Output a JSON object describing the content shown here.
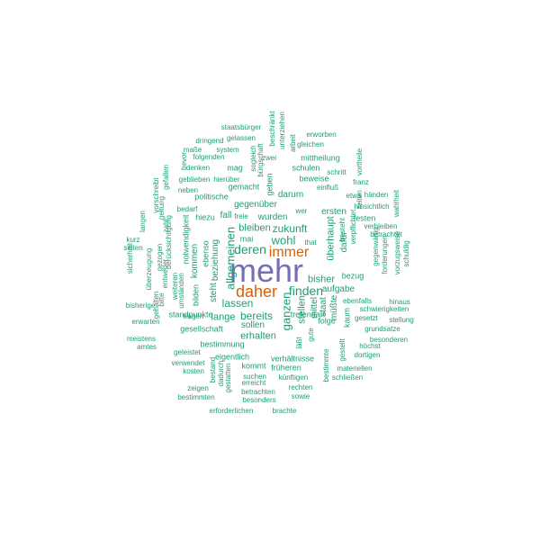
{
  "colors": {
    "primary": "#7570b3",
    "secondary": "#d95f02",
    "common": "#1b9e77"
  },
  "words": [
    {
      "text": "mehr",
      "weight": 1.0,
      "color": "primary"
    },
    {
      "text": "daher",
      "weight": 0.55,
      "color": "secondary"
    },
    {
      "text": "immer",
      "weight": 0.45,
      "color": "secondary"
    },
    {
      "text": "finden",
      "weight": 0.35,
      "color": "common"
    },
    {
      "text": "deren",
      "weight": 0.33,
      "color": "common"
    },
    {
      "text": "allgemeinen",
      "weight": 0.32,
      "color": "common"
    },
    {
      "text": "wohl",
      "weight": 0.3,
      "color": "common"
    },
    {
      "text": "ganzen",
      "weight": 0.3,
      "color": "common"
    },
    {
      "text": "zukunft",
      "weight": 0.28,
      "color": "common"
    },
    {
      "text": "lassen",
      "weight": 0.28,
      "color": "common"
    },
    {
      "text": "bereits",
      "weight": 0.28,
      "color": "common"
    },
    {
      "text": "bleiben",
      "weight": 0.27,
      "color": "common"
    },
    {
      "text": "überhaupt",
      "weight": 0.27,
      "color": "common"
    },
    {
      "text": "erhalten",
      "weight": 0.26,
      "color": "common"
    },
    {
      "text": "bisher",
      "weight": 0.26,
      "color": "common"
    },
    {
      "text": "stellen",
      "weight": 0.25,
      "color": "common"
    },
    {
      "text": "lange",
      "weight": 0.25,
      "color": "common"
    },
    {
      "text": "gegenüber",
      "weight": 0.24,
      "color": "common"
    },
    {
      "text": "wurden",
      "weight": 0.24,
      "color": "common"
    },
    {
      "text": "ersten",
      "weight": 0.24,
      "color": "common"
    },
    {
      "text": "sollen",
      "weight": 0.24,
      "color": "common"
    },
    {
      "text": "müßte",
      "weight": 0.24,
      "color": "common"
    },
    {
      "text": "darum",
      "weight": 0.23,
      "color": "common"
    },
    {
      "text": "steht",
      "weight": 0.23,
      "color": "common"
    },
    {
      "text": "aufgabe",
      "weight": 0.23,
      "color": "common"
    },
    {
      "text": "staat",
      "weight": 0.23,
      "color": "common"
    },
    {
      "text": "kommen",
      "weight": 0.22,
      "color": "common"
    },
    {
      "text": "fall",
      "weight": 0.22,
      "color": "common"
    },
    {
      "text": "beziehung",
      "weight": 0.22,
      "color": "common"
    },
    {
      "text": "mittel",
      "weight": 0.22,
      "color": "common"
    },
    {
      "text": "dafür",
      "weight": 0.22,
      "color": "common"
    },
    {
      "text": "gesellschaft",
      "weight": 0.21,
      "color": "common"
    },
    {
      "text": "ebenso",
      "weight": 0.21,
      "color": "common"
    },
    {
      "text": "notwendigkeit",
      "weight": 0.2,
      "color": "common"
    },
    {
      "text": "bilden",
      "weight": 0.2,
      "color": "common"
    },
    {
      "text": "mai",
      "weight": 0.2,
      "color": "common"
    },
    {
      "text": "geben",
      "weight": 0.2,
      "color": "common"
    },
    {
      "text": "kaum",
      "weight": 0.2,
      "color": "common"
    },
    {
      "text": "folge",
      "weight": 0.2,
      "color": "common"
    },
    {
      "text": "bestimmung",
      "weight": 0.2,
      "color": "common"
    },
    {
      "text": "mittheilung",
      "weight": 0.2,
      "color": "common"
    },
    {
      "text": "verhältnisse",
      "weight": 0.2,
      "color": "common"
    },
    {
      "text": "tretendarf",
      "weight": 0.2,
      "color": "common"
    },
    {
      "text": "standpunkte",
      "weight": 0.19,
      "color": "common"
    },
    {
      "text": "politische",
      "weight": 0.19,
      "color": "common"
    },
    {
      "text": "gemacht",
      "weight": 0.19,
      "color": "common"
    },
    {
      "text": "hiezu",
      "weight": 0.19,
      "color": "common"
    },
    {
      "text": "eigentlich",
      "weight": 0.19,
      "color": "common"
    },
    {
      "text": "kommt",
      "weight": 0.19,
      "color": "common"
    },
    {
      "text": "früheren",
      "weight": 0.19,
      "color": "common"
    },
    {
      "text": "bezug",
      "weight": 0.19,
      "color": "common"
    },
    {
      "text": "festen",
      "weight": 0.19,
      "color": "common"
    },
    {
      "text": "beweise",
      "weight": 0.19,
      "color": "common"
    },
    {
      "text": "schulen",
      "weight": 0.19,
      "color": "common"
    },
    {
      "text": "mag",
      "weight": 0.19,
      "color": "common"
    },
    {
      "text": "folgenden",
      "weight": 0.18,
      "color": "common"
    },
    {
      "text": "tragen",
      "weight": 0.18,
      "color": "common"
    },
    {
      "text": "geleistet",
      "weight": 0.18,
      "color": "common"
    },
    {
      "text": "suchen",
      "weight": 0.18,
      "color": "common"
    },
    {
      "text": "künftigen",
      "weight": 0.18,
      "color": "common"
    },
    {
      "text": "materiellen",
      "weight": 0.18,
      "color": "common"
    },
    {
      "text": "betrachten",
      "weight": 0.18,
      "color": "common"
    },
    {
      "text": "erreicht",
      "weight": 0.18,
      "color": "common"
    },
    {
      "text": "gute",
      "weight": 0.18,
      "color": "common"
    },
    {
      "text": "läßt",
      "weight": 0.18,
      "color": "common"
    },
    {
      "text": "ebenfalls",
      "weight": 0.17,
      "color": "common"
    },
    {
      "text": "gesetzt",
      "weight": 0.17,
      "color": "common"
    },
    {
      "text": "schwierigkeiten",
      "weight": 0.17,
      "color": "common"
    },
    {
      "text": "verbleiben",
      "weight": 0.17,
      "color": "common"
    },
    {
      "text": "betrachtet",
      "weight": 0.17,
      "color": "common"
    },
    {
      "text": "besteht",
      "weight": 0.17,
      "color": "common"
    },
    {
      "text": "verpflichtet",
      "weight": 0.17,
      "color": "common"
    },
    {
      "text": "einfluß",
      "weight": 0.17,
      "color": "common"
    },
    {
      "text": "sogleich",
      "weight": 0.17,
      "color": "common"
    },
    {
      "text": "bürgschaft",
      "weight": 0.17,
      "color": "common"
    },
    {
      "text": "arbeit",
      "weight": 0.17,
      "color": "common"
    },
    {
      "text": "beschränkt",
      "weight": 0.17,
      "color": "common"
    },
    {
      "text": "unterziehen",
      "weight": 0.17,
      "color": "common"
    },
    {
      "text": "bedarf",
      "weight": 0.17,
      "color": "common"
    },
    {
      "text": "neben",
      "weight": 0.17,
      "color": "common"
    },
    {
      "text": "hierüber",
      "weight": 0.17,
      "color": "common"
    },
    {
      "text": "berücksichtigung",
      "weight": 0.17,
      "color": "common"
    },
    {
      "text": "umständen",
      "weight": 0.17,
      "color": "common"
    },
    {
      "text": "weiteren",
      "weight": 0.17,
      "color": "common"
    },
    {
      "text": "freie",
      "weight": 0.17,
      "color": "common"
    },
    {
      "text": "that",
      "weight": 0.17,
      "color": "common"
    },
    {
      "text": "wer",
      "weight": 0.17,
      "color": "common"
    },
    {
      "text": "zwei",
      "weight": 0.17,
      "color": "common"
    },
    {
      "text": "zeigen",
      "weight": 0.16,
      "color": "common"
    },
    {
      "text": "besonders",
      "weight": 0.16,
      "color": "common"
    },
    {
      "text": "rechten",
      "weight": 0.16,
      "color": "common"
    },
    {
      "text": "sowie",
      "weight": 0.16,
      "color": "common"
    },
    {
      "text": "kosten",
      "weight": 0.16,
      "color": "common"
    },
    {
      "text": "verwendet",
      "weight": 0.16,
      "color": "common"
    },
    {
      "text": "gestatten",
      "weight": 0.16,
      "color": "common"
    },
    {
      "text": "dadurch",
      "weight": 0.16,
      "color": "common"
    },
    {
      "text": "bestand",
      "weight": 0.16,
      "color": "common"
    },
    {
      "text": "schließen",
      "weight": 0.16,
      "color": "common"
    },
    {
      "text": "höchst",
      "weight": 0.16,
      "color": "common"
    },
    {
      "text": "dortigen",
      "weight": 0.16,
      "color": "common"
    },
    {
      "text": "besonderen",
      "weight": 0.16,
      "color": "common"
    },
    {
      "text": "grundsatze",
      "weight": 0.16,
      "color": "common"
    },
    {
      "text": "stellung",
      "weight": 0.16,
      "color": "common"
    },
    {
      "text": "hinaus",
      "weight": 0.16,
      "color": "common"
    },
    {
      "text": "gestellt",
      "weight": 0.16,
      "color": "common"
    },
    {
      "text": "bestimmte",
      "weight": 0.16,
      "color": "common"
    },
    {
      "text": "bestimmten",
      "weight": 0.16,
      "color": "common"
    },
    {
      "text": "erforderlichen",
      "weight": 0.16,
      "color": "common"
    },
    {
      "text": "brachte",
      "weight": 0.16,
      "color": "common"
    },
    {
      "text": "meistens",
      "weight": 0.16,
      "color": "common"
    },
    {
      "text": "amtes",
      "weight": 0.16,
      "color": "common"
    },
    {
      "text": "erwarten",
      "weight": 0.16,
      "color": "common"
    },
    {
      "text": "bisherige",
      "weight": 0.16,
      "color": "common"
    },
    {
      "text": "bitte",
      "weight": 0.16,
      "color": "common"
    },
    {
      "text": "gehalten",
      "weight": 0.16,
      "color": "common"
    },
    {
      "text": "entweder",
      "weight": 0.16,
      "color": "common"
    },
    {
      "text": "sicherheit",
      "weight": 0.16,
      "color": "common"
    },
    {
      "text": "seiten",
      "weight": 0.16,
      "color": "common"
    },
    {
      "text": "kurz",
      "weight": 0.16,
      "color": "common"
    },
    {
      "text": "überzeugung",
      "weight": 0.16,
      "color": "common"
    },
    {
      "text": "gezogen",
      "weight": 0.16,
      "color": "common"
    },
    {
      "text": "langen",
      "weight": 0.16,
      "color": "common"
    },
    {
      "text": "zahl",
      "weight": 0.16,
      "color": "common"
    },
    {
      "text": "geltung",
      "weight": 0.16,
      "color": "common"
    },
    {
      "text": "vorschreibt",
      "weight": 0.16,
      "color": "common"
    },
    {
      "text": "gefallen",
      "weight": 0.16,
      "color": "common"
    },
    {
      "text": "geblieben",
      "weight": 0.16,
      "color": "common"
    },
    {
      "text": "denken",
      "weight": 0.16,
      "color": "common"
    },
    {
      "text": "bevor",
      "weight": 0.16,
      "color": "common"
    },
    {
      "text": "maße",
      "weight": 0.16,
      "color": "common"
    },
    {
      "text": "system",
      "weight": 0.16,
      "color": "common"
    },
    {
      "text": "dringend",
      "weight": 0.16,
      "color": "common"
    },
    {
      "text": "gelassen",
      "weight": 0.16,
      "color": "common"
    },
    {
      "text": "staatsbürger",
      "weight": 0.16,
      "color": "common"
    },
    {
      "text": "erworben",
      "weight": 0.16,
      "color": "common"
    },
    {
      "text": "gleichen",
      "weight": 0.16,
      "color": "common"
    },
    {
      "text": "schritt",
      "weight": 0.16,
      "color": "common"
    },
    {
      "text": "vortheile",
      "weight": 0.16,
      "color": "common"
    },
    {
      "text": "franz",
      "weight": 0.16,
      "color": "common"
    },
    {
      "text": "zeiten",
      "weight": 0.16,
      "color": "common"
    },
    {
      "text": "etwa",
      "weight": 0.16,
      "color": "common"
    },
    {
      "text": "händen",
      "weight": 0.16,
      "color": "common"
    },
    {
      "text": "wahrheit",
      "weight": 0.16,
      "color": "common"
    },
    {
      "text": "hinsichtlich",
      "weight": 0.16,
      "color": "common"
    },
    {
      "text": "gegenwärtig",
      "weight": 0.16,
      "color": "common"
    },
    {
      "text": "forderungen",
      "weight": 0.16,
      "color": "common"
    },
    {
      "text": "vorzugsweise",
      "weight": 0.16,
      "color": "common"
    },
    {
      "text": "schuldig",
      "weight": 0.16,
      "color": "common"
    }
  ]
}
